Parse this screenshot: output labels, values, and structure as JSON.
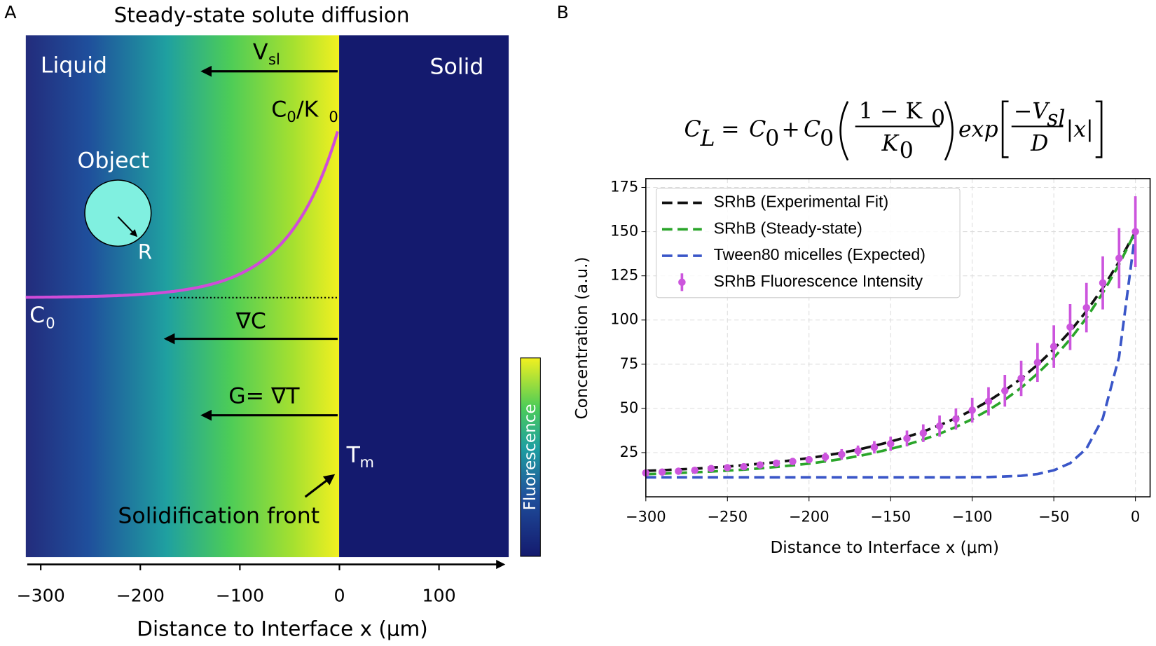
{
  "chart_data": [
    {
      "type": "schematic",
      "panel_label": "A",
      "title": "Steady-state solute diffusion",
      "labels": {
        "liquid": "Liquid",
        "solid": "Solid",
        "vsl": [
          "V",
          "sl"
        ],
        "c0k0": [
          "C",
          "0",
          "/K",
          "0"
        ],
        "object": "Object",
        "r": "R",
        "c0": [
          "C",
          "0"
        ],
        "grad_c": "∇C",
        "grad_t": "G= ∇T",
        "tm": [
          "T",
          "m"
        ],
        "front": "Solidification front"
      },
      "colorbar_label": "Fluorescence",
      "xlabel": "Distance to Interface x (μm)",
      "xlim": [
        -315,
        170
      ],
      "xticks": [
        {
          "value": -300,
          "label": "−300"
        },
        {
          "value": -200,
          "label": "−200"
        },
        {
          "value": -100,
          "label": "−100"
        },
        0,
        100
      ]
    },
    {
      "type": "line",
      "panel_label": "B",
      "equation": [
        "C",
        "L",
        "=",
        "C",
        "0",
        "+",
        "C",
        "0",
        "1 − K",
        "0",
        "K",
        "0",
        "exp",
        "−V",
        "sl",
        "D",
        "|x|"
      ],
      "xlabel": "Distance to Interface x (μm)",
      "ylabel": "Concentration (a.u.)",
      "x": [
        -300,
        -290,
        -280,
        -270,
        -260,
        -250,
        -240,
        -230,
        -220,
        -210,
        -200,
        -190,
        -180,
        -170,
        -160,
        -150,
        -140,
        -130,
        -120,
        -110,
        -100,
        -90,
        -80,
        -70,
        -60,
        -50,
        -40,
        -30,
        -20,
        -10,
        0
      ],
      "series": [
        {
          "name": "SRhB (Experimental Fit)",
          "color": "#111111",
          "style": "dashed",
          "values": [
            14.7,
            15.0,
            15.5,
            15.9,
            16.5,
            17.1,
            17.9,
            18.7,
            19.6,
            20.7,
            21.9,
            23.3,
            24.9,
            26.7,
            28.8,
            31.2,
            33.9,
            36.9,
            40.5,
            44.5,
            49.0,
            54.2,
            60.2,
            66.9,
            74.7,
            83.5,
            93.6,
            105.0,
            118.1,
            133.0,
            150
          ]
        },
        {
          "name": "SRhB (Steady-state)",
          "color": "#2aa52a",
          "style": "dashed",
          "values": [
            12.8,
            13.1,
            13.5,
            13.9,
            14.3,
            14.8,
            15.4,
            16.1,
            16.9,
            17.8,
            18.8,
            20.0,
            21.4,
            23.0,
            24.9,
            27.1,
            29.5,
            32.4,
            35.7,
            39.5,
            44.0,
            49.1,
            54.9,
            61.7,
            69.7,
            78.7,
            89.1,
            101.2,
            115.3,
            131.4,
            150
          ]
        },
        {
          "name": "Tween80 micelles (Expected)",
          "color": "#3a56c8",
          "style": "dashed",
          "values": [
            11,
            11,
            11,
            11,
            11,
            11,
            11,
            11,
            11,
            11,
            11,
            11,
            11,
            11,
            11,
            11,
            11,
            11,
            11,
            11,
            11.1,
            11.2,
            11.5,
            11.9,
            12.9,
            15,
            19,
            27.3,
            44.3,
            79.1,
            150
          ]
        },
        {
          "name": "SRhB Fluorescence Intensity",
          "color": "#cc55dd",
          "style": "errorbar",
          "values": [
            13.5,
            14,
            14.5,
            15,
            16,
            16.5,
            17,
            18,
            19,
            20,
            21,
            22.5,
            24,
            26,
            28,
            30,
            33,
            36,
            40,
            44,
            49,
            54,
            60,
            67,
            76,
            85,
            96,
            107,
            121,
            135,
            150
          ],
          "errors": [
            1,
            1,
            1,
            1,
            1,
            1,
            1,
            1.5,
            1.5,
            2,
            2,
            2.5,
            3,
            3,
            3.5,
            4,
            4.5,
            5,
            6,
            6,
            7,
            8,
            9,
            10,
            11,
            12,
            13,
            14,
            15,
            17,
            20
          ]
        }
      ],
      "xlim": [
        -300,
        9
      ],
      "ylim": [
        0,
        180
      ],
      "xticks": [
        {
          "value": -300,
          "label": "−300"
        },
        {
          "value": -250,
          "label": "−250"
        },
        {
          "value": -200,
          "label": "−200"
        },
        {
          "value": -150,
          "label": "−150"
        },
        {
          "value": -100,
          "label": "−100"
        },
        {
          "value": -50,
          "label": "−50"
        },
        0
      ],
      "yticks": [
        25,
        50,
        75,
        100,
        125,
        150,
        175
      ],
      "grid": true,
      "legend": "upper left"
    }
  ]
}
